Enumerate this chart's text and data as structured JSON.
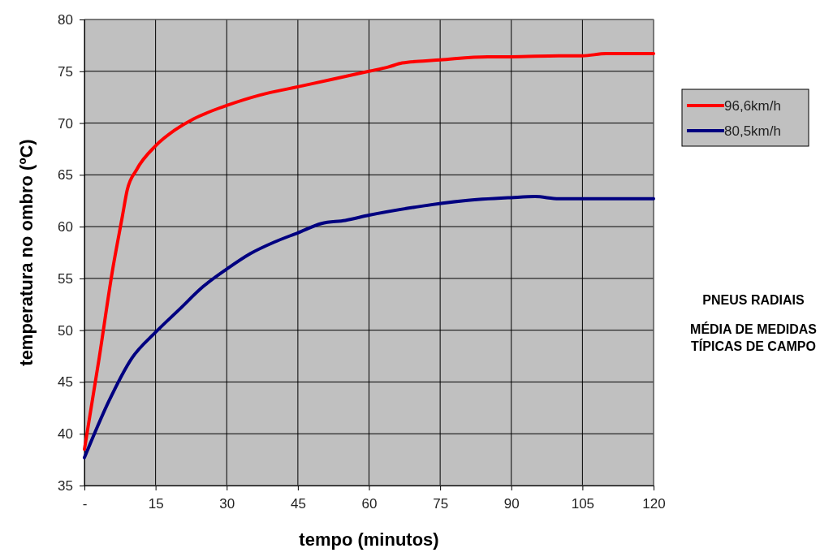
{
  "chart_data": {
    "type": "line",
    "xlabel": "tempo (minutos)",
    "ylabel": "temperatura no ombro (ºC)",
    "xlim": [
      0,
      120
    ],
    "xticks": [
      {
        "value": 0,
        "label": "-"
      },
      15,
      30,
      45,
      60,
      75,
      90,
      105,
      120
    ],
    "ylim": [
      35,
      80
    ],
    "yticks": [
      35,
      40,
      45,
      50,
      55,
      60,
      65,
      70,
      75,
      80
    ],
    "grid": true,
    "legend": "right",
    "marker": "none",
    "line_style": "solid",
    "annotations": [
      "PNEUS RADIAIS",
      "MÉDIA DE MEDIDAS TÍPICAS DE CAMPO"
    ],
    "series": [
      {
        "name": "96,6km/h",
        "color": "#ff0000",
        "x": [
          0,
          3,
          6,
          8,
          9,
          11,
          15,
          19,
          23,
          27,
          30,
          37,
          45,
          52,
          60,
          64,
          67,
          72,
          75,
          85,
          90,
          100,
          105,
          110,
          120
        ],
        "values": [
          38.5,
          47,
          56,
          61,
          63.5,
          65.5,
          67.8,
          69.3,
          70.4,
          71.2,
          71.7,
          72.7,
          73.5,
          74.2,
          75,
          75.4,
          75.8,
          76,
          76.1,
          76.4,
          76.4,
          76.5,
          76.5,
          76.7,
          76.7
        ]
      },
      {
        "name": "80,5km/h",
        "color": "#000080",
        "x": [
          0,
          5,
          10,
          15,
          20,
          25,
          30,
          35,
          40,
          45,
          50,
          55,
          60,
          70,
          80,
          90,
          95,
          100,
          120
        ],
        "values": [
          37.7,
          43,
          47.3,
          49.8,
          52,
          54.2,
          55.9,
          57.4,
          58.5,
          59.4,
          60.3,
          60.6,
          61.1,
          61.9,
          62.5,
          62.8,
          62.9,
          62.7,
          62.7
        ]
      }
    ]
  }
}
